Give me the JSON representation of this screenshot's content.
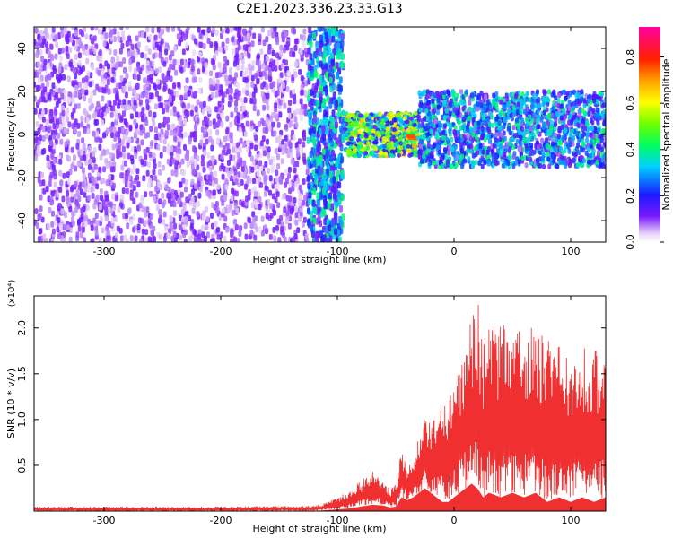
{
  "title": "C2E1.2023.336.23.33.G13",
  "colors": {
    "snr_line": "#f03030",
    "background": "#ffffff",
    "axis": "#000000"
  },
  "chart_data": [
    {
      "type": "heatmap",
      "title": "",
      "xlabel": "Height of straight line (km)",
      "ylabel": "Frequency (Hz)",
      "xlim": [
        -360,
        130
      ],
      "ylim": [
        -50,
        50
      ],
      "xticks": [
        -300,
        -200,
        -100,
        0,
        100
      ],
      "yticks": [
        -40,
        -20,
        0,
        20,
        40
      ],
      "grid": false,
      "colorbar": {
        "label": "Normalized spectral amplitude",
        "range": [
          0.0,
          0.93
        ],
        "ticks": [
          "0.0",
          "0.2",
          "0.4",
          "0.6",
          "0.8"
        ],
        "tick_values": [
          0.0,
          0.2,
          0.4,
          0.6,
          0.8
        ],
        "colormap": "rainbow"
      },
      "features": [
        {
          "x_start": -360,
          "x_end": -125,
          "f_min": -50,
          "f_max": 50,
          "amplitude": 0.08
        },
        {
          "x_start": -125,
          "x_end": -95,
          "f_min": -50,
          "f_max": 50,
          "amplitude": 0.25
        },
        {
          "x_start": -95,
          "x_end": -30,
          "f_min": -10,
          "f_max": 10,
          "amplitude": 0.35
        },
        {
          "x_start": -40,
          "x_end": -30,
          "f_min": -2,
          "f_max": 0,
          "amplitude": 0.93
        },
        {
          "x_start": -30,
          "x_end": 130,
          "f_min": -15,
          "f_max": 20,
          "amplitude": 0.2
        }
      ]
    },
    {
      "type": "line",
      "title": "",
      "xlabel": "Height of straight line (km)",
      "ylabel": "SNR (10 * v/v)",
      "y_multiplier": "(x10⁴)",
      "xlim": [
        -360,
        130
      ],
      "ylim": [
        0,
        23500
      ],
      "xticks": [
        -300,
        -200,
        -100,
        0,
        100
      ],
      "yticks": [
        5000,
        10000,
        15000,
        20000
      ],
      "ytick_labels": [
        "0.5",
        "1.0",
        "1.5",
        "2.0"
      ],
      "grid": false,
      "series": [
        {
          "name": "",
          "x": [
            -360,
            -300,
            -200,
            -120,
            -110,
            -100,
            -90,
            -80,
            -70,
            -60,
            -55,
            -50,
            -45,
            -40,
            -35,
            -30,
            -25,
            -20,
            -15,
            -10,
            -5,
            0,
            5,
            10,
            15,
            20,
            25,
            30,
            40,
            50,
            60,
            70,
            80,
            90,
            100,
            110,
            120,
            130
          ],
          "max": [
            500,
            500,
            500,
            600,
            900,
            1500,
            2200,
            3300,
            4500,
            3500,
            2500,
            3000,
            7000,
            5000,
            5500,
            8500,
            10500,
            10000,
            11000,
            12500,
            12500,
            14000,
            17000,
            19000,
            21500,
            23500,
            19000,
            20000,
            21000,
            19000,
            21000,
            20000,
            19000,
            18000,
            17500,
            18000,
            17500,
            18500
          ],
          "min": [
            0,
            0,
            0,
            0,
            100,
            200,
            300,
            500,
            700,
            600,
            400,
            500,
            1500,
            1200,
            1500,
            2000,
            2500,
            2000,
            1500,
            1000,
            1000,
            1500,
            2000,
            2500,
            3000,
            2500,
            1500,
            2000,
            1500,
            2000,
            1500,
            2000,
            1000,
            1500,
            1000,
            1500,
            1000,
            1500
          ]
        }
      ]
    }
  ]
}
